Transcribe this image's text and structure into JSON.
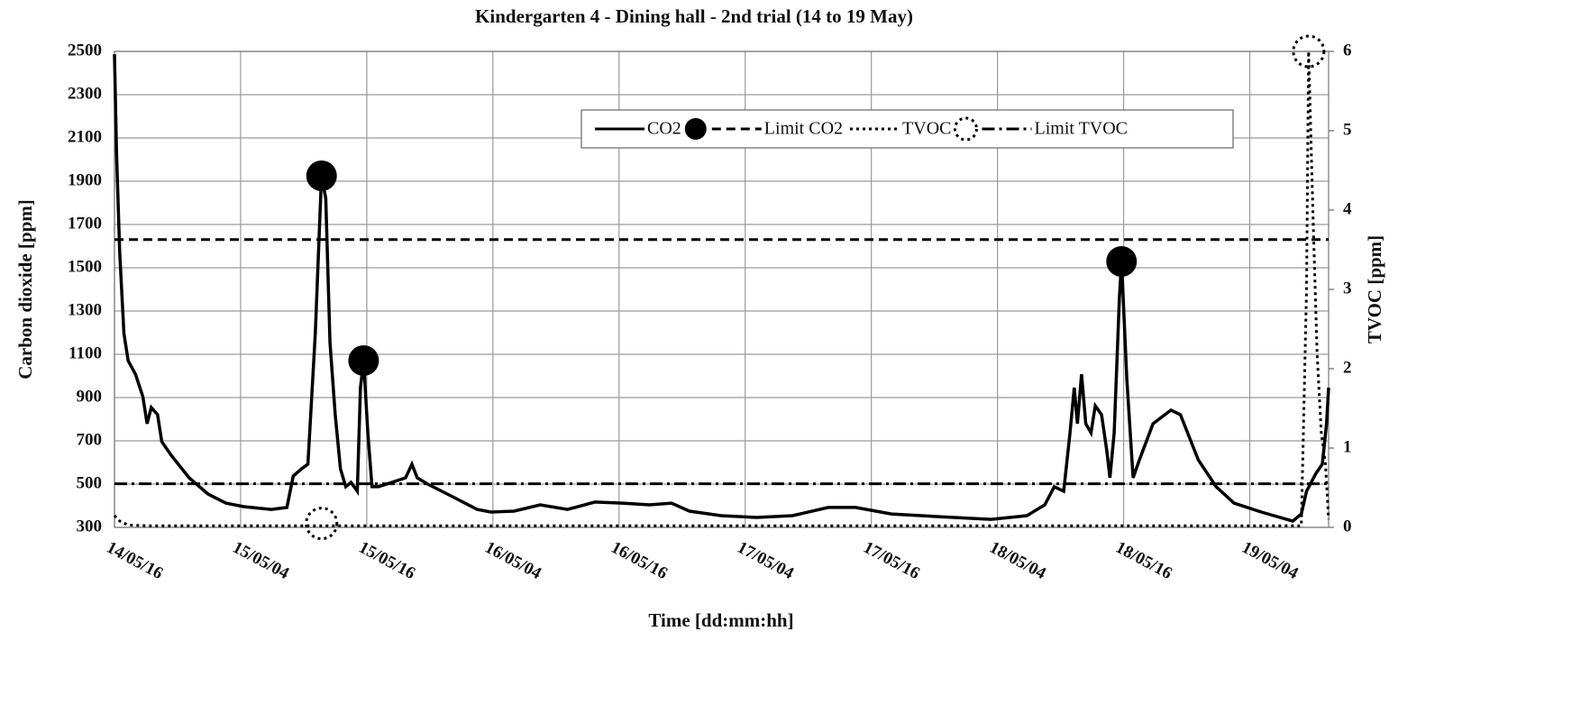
{
  "chart_data": {
    "type": "line",
    "title": "Kindergarten 4 - Dining hall - 2nd trial (14 to 19 May)",
    "xlabel": "Time [dd:mm:hh]",
    "ylabel": "Carbon dioxide  [ppm]",
    "y2label": "TVOC [ppm]",
    "xlim": [
      16,
      131.5
    ],
    "xticks": [
      {
        "value": 16,
        "label": "14/05/16"
      },
      {
        "value": 28,
        "label": "15/05/04"
      },
      {
        "value": 40,
        "label": "15/05/16"
      },
      {
        "value": 52,
        "label": "16/05/04"
      },
      {
        "value": 64,
        "label": "16/05/16"
      },
      {
        "value": 76,
        "label": "17/05/04"
      },
      {
        "value": 88,
        "label": "17/05/16"
      },
      {
        "value": 100,
        "label": "18/05/04"
      },
      {
        "value": 112,
        "label": "18/05/16"
      },
      {
        "value": 124,
        "label": "19/05/04"
      }
    ],
    "ylim": [
      300,
      2500
    ],
    "yticks": [
      300,
      500,
      700,
      900,
      1100,
      1300,
      1500,
      1700,
      1900,
      2100,
      2300,
      2500
    ],
    "y2lim": [
      0,
      6
    ],
    "y2ticks": [
      0,
      1,
      2,
      3,
      4,
      5,
      6
    ],
    "grid": true,
    "legend": "top-right",
    "series": [
      {
        "name": "CO2",
        "color": "#000000",
        "style": "solid",
        "axis": "y",
        "x": [
          16.0,
          16.2,
          16.5,
          16.9,
          17.3,
          18.0,
          18.7,
          19.1,
          19.5,
          20.1,
          20.5,
          21.4,
          23.1,
          24.9,
          26.6,
          28.3,
          30.9,
          32.4,
          33.0,
          33.8,
          34.4,
          35.1,
          35.7,
          36.1,
          36.5,
          37.0,
          37.5,
          38.0,
          38.5,
          39.1,
          39.4,
          39.7,
          40.1,
          40.5,
          41.1,
          42.4,
          43.7,
          44.3,
          44.8,
          45.8,
          48.0,
          50.5,
          51.8,
          54.0,
          56.5,
          59.1,
          61.7,
          64.3,
          66.9,
          69.0,
          70.7,
          73.7,
          77.1,
          80.5,
          83.9,
          86.5,
          89.9,
          94.2,
          99.4,
          102.8,
          104.5,
          105.4,
          106.3,
          106.9,
          107.3,
          107.6,
          108.0,
          108.4,
          108.9,
          109.3,
          109.9,
          110.4,
          110.7,
          111.1,
          111.6,
          111.8,
          112.3,
          112.9,
          113.5,
          114.8,
          116.5,
          117.4,
          119.1,
          120.8,
          122.5,
          125.1,
          128.1,
          128.9,
          129.4,
          130.3,
          130.9,
          131.3,
          131.5
        ],
        "values": [
          2487,
          2030,
          1570,
          1196,
          1070,
          1008,
          904,
          779,
          854,
          821,
          696,
          633,
          529,
          454,
          412,
          396,
          383,
          392,
          537,
          571,
          592,
          1196,
          1925,
          1821,
          1154,
          821,
          571,
          488,
          508,
          467,
          946,
          1071,
          737,
          488,
          488,
          508,
          529,
          592,
          529,
          500,
          446,
          383,
          371,
          375,
          404,
          383,
          417,
          412,
          404,
          412,
          375,
          354,
          346,
          354,
          392,
          392,
          362,
          350,
          337,
          354,
          404,
          488,
          467,
          737,
          946,
          779,
          1008,
          779,
          737,
          862,
          821,
          654,
          529,
          737,
          1362,
          1529,
          987,
          529,
          612,
          779,
          842,
          821,
          612,
          488,
          412,
          371,
          329,
          362,
          467,
          550,
          592,
          779,
          946
        ],
        "markers": {
          "style": "filled",
          "x": [
            35.7,
            39.7,
            111.8
          ],
          "values": [
            1925,
            1071,
            1529
          ]
        }
      },
      {
        "name": "Limit CO2",
        "color": "#000000",
        "style": "dashed",
        "axis": "y",
        "x": [
          16,
          131.5
        ],
        "values": [
          1630,
          1630
        ]
      },
      {
        "name": "TVOC",
        "color": "#000000",
        "style": "dotted",
        "axis": "y2",
        "x": [
          16.0,
          16.5,
          17.3,
          19.0,
          128.9,
          129.4,
          129.6,
          130.0,
          130.4,
          130.8,
          131.2,
          131.5
        ],
        "values": [
          0.15,
          0.08,
          0.03,
          0.02,
          0.02,
          3,
          6,
          4,
          2.2,
          1.2,
          0.8,
          0.1
        ],
        "markers": {
          "style": "dotted",
          "x": [
            35.7,
            129.6
          ],
          "values": [
            0.05,
            6
          ]
        }
      },
      {
        "name": "Limit TVOC",
        "color": "#000000",
        "style": "dashdot",
        "axis": "y2",
        "x": [
          16,
          131.5
        ],
        "values": [
          0.55,
          0.55
        ]
      }
    ]
  }
}
